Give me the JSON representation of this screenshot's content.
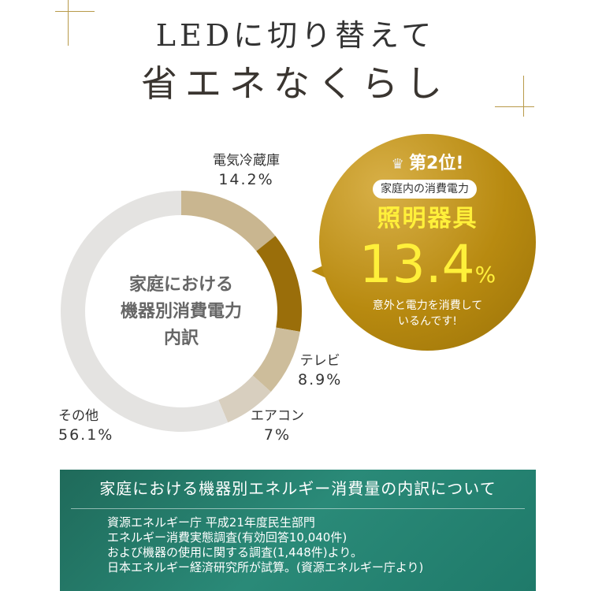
{
  "header": {
    "line1": "LEDに切り替えて",
    "line2": "省エネなくらし"
  },
  "chart_data": {
    "type": "pie",
    "donut": true,
    "title": "家庭における機器別消費電力内訳",
    "categories": [
      "電気冷蔵庫",
      "照明器具",
      "テレビ",
      "エアコン",
      "その他"
    ],
    "values": [
      14.2,
      13.4,
      8.9,
      7,
      56.1
    ],
    "value_labels": [
      "14.2%",
      "13.4%",
      "8.9%",
      "7%",
      "56.1%"
    ],
    "colors": [
      "#c9b690",
      "#9a6e0a",
      "#cdbd9b",
      "#d8cfbf",
      "#e4e3e1"
    ]
  },
  "center_label": [
    "家庭における",
    "機器別消費電力",
    "内訳"
  ],
  "badge": {
    "rank": "第2位!",
    "subtitle": "家庭内の消費電力",
    "item": "照明器具",
    "value": "13.4",
    "unit": "%",
    "note_lines": [
      "意外と電力を消費して",
      "いるんです!"
    ],
    "icon": "crown-icon"
  },
  "source": {
    "title": "家庭における機器別エネルギー消費量の内訳について",
    "lines": [
      "資源エネルギー庁 平成21年度民生部門",
      "エネルギー消費実態調査(有効回答10,040件)",
      "および機器の使用に関する調査(1,448件)より。",
      "日本エネルギー経済研究所が試算。(資源エネルギー庁より)"
    ]
  }
}
